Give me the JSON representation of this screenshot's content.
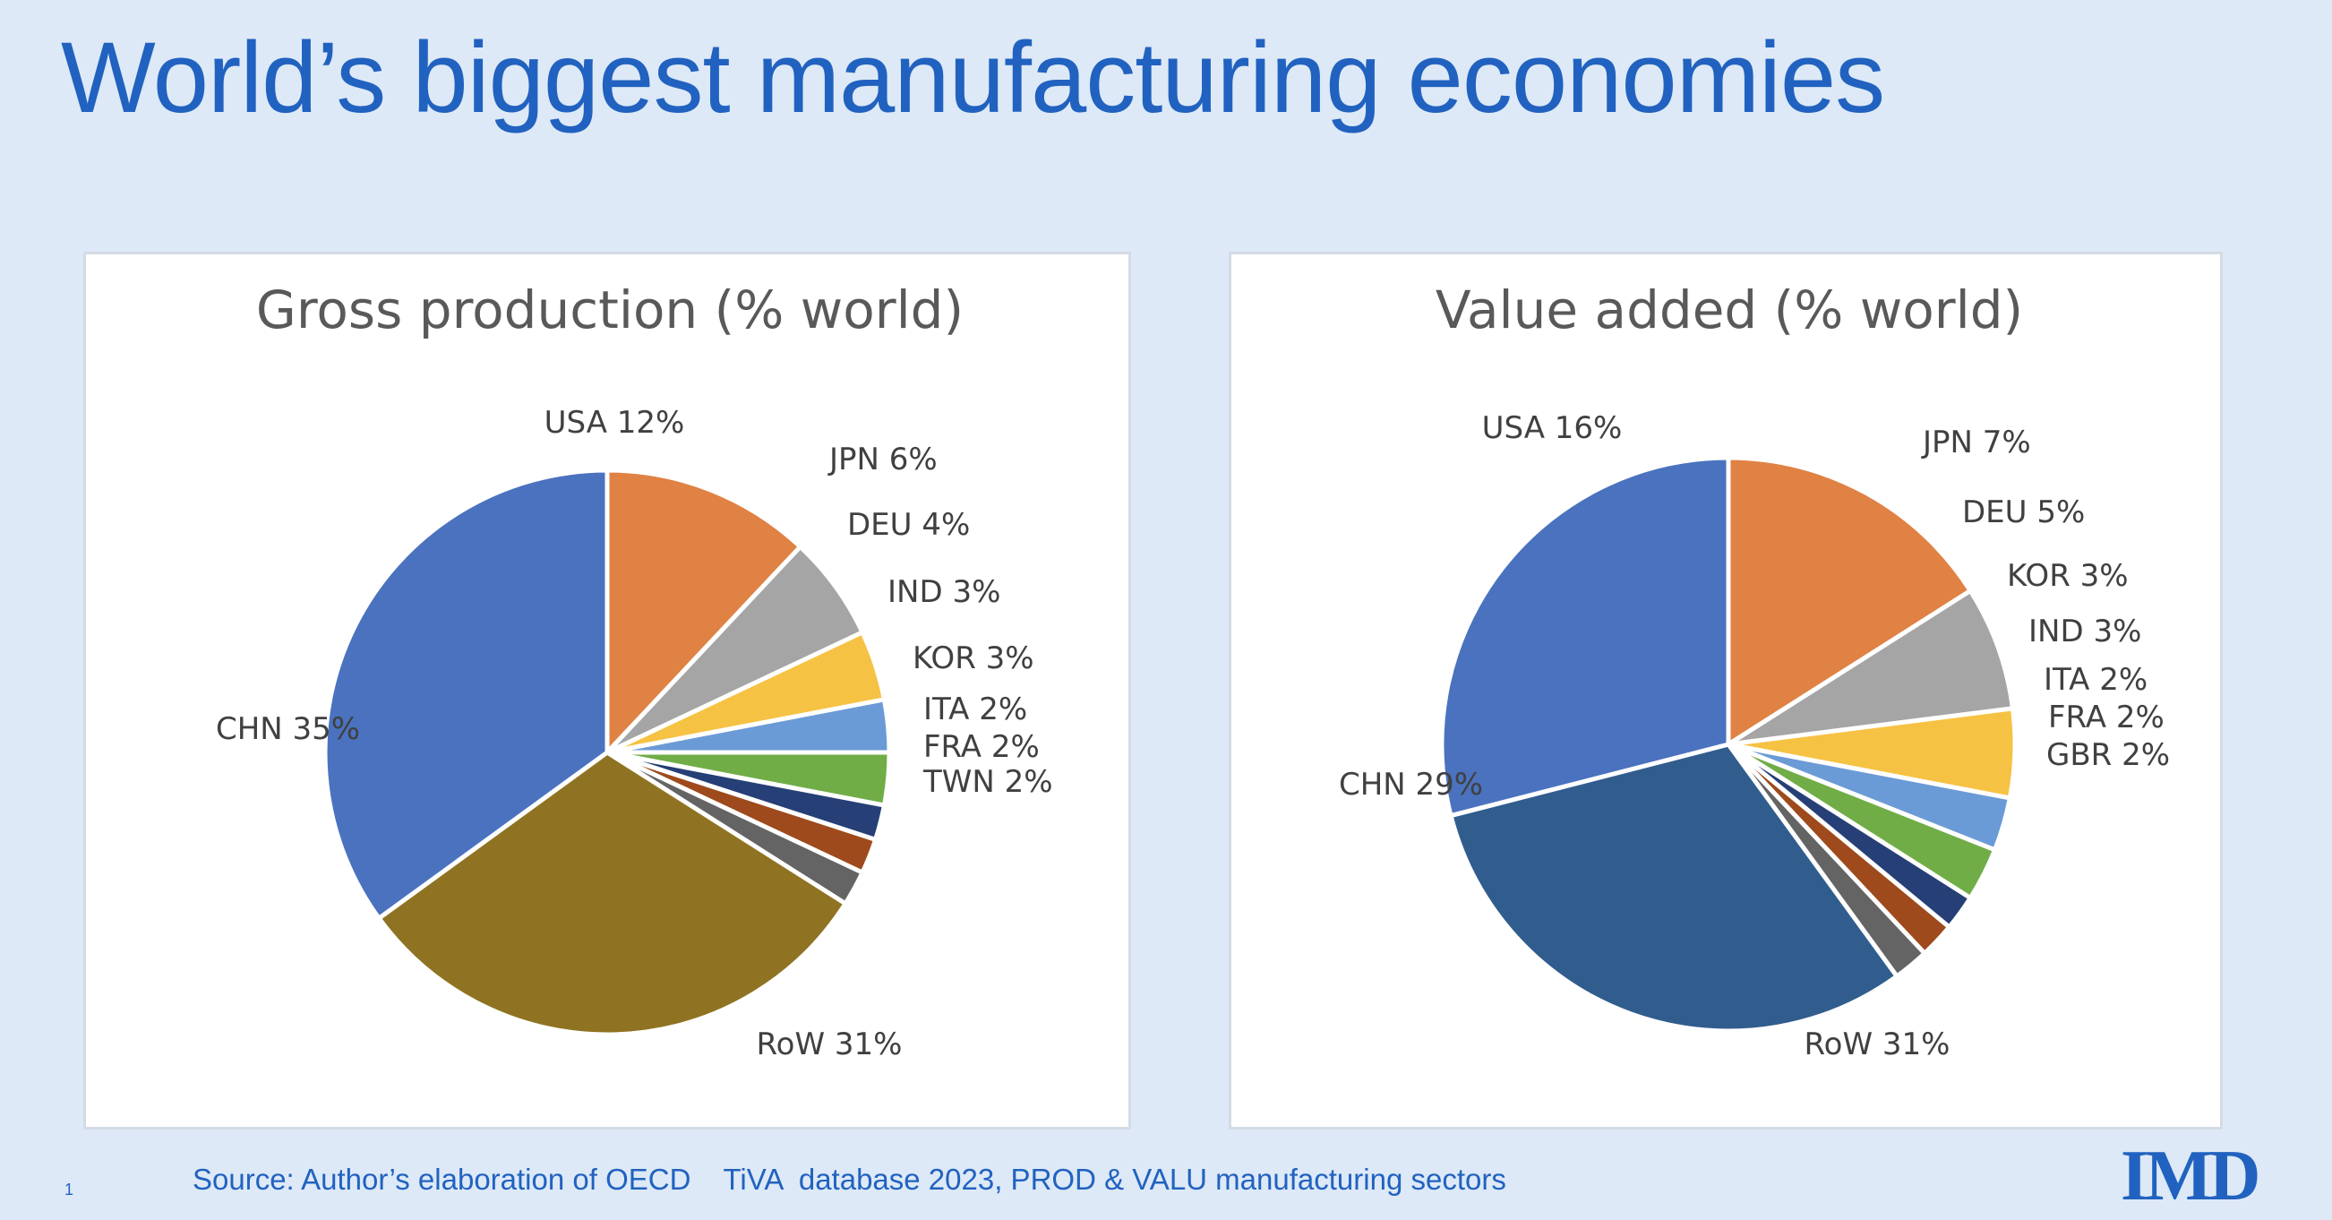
{
  "title": "World’s biggest manufacturing economies",
  "source": "Source: Author’s elaboration of OECD    TiVA  database 2023, PROD & VALU manufacturing sectors",
  "page_number": "1",
  "logo_text": "IMD",
  "chart_data": [
    {
      "type": "pie",
      "title": "Gross production  (% world)",
      "start": "12 o'clock",
      "direction": "clockwise",
      "slices": [
        {
          "category": "USA",
          "value": 12,
          "label": "USA 12%",
          "color": "#df8244"
        },
        {
          "category": "JPN",
          "value": 6,
          "label": "JPN 6%",
          "color": "#a5a5a5"
        },
        {
          "category": "DEU",
          "value": 4,
          "label": "DEU 4%",
          "color": "#f6c243"
        },
        {
          "category": "IND",
          "value": 3,
          "label": "IND 3%",
          "color": "#6b9bd6"
        },
        {
          "category": "KOR",
          "value": 3,
          "label": "KOR 3%",
          "color": "#70ad47"
        },
        {
          "category": "ITA",
          "value": 2,
          "label": "ITA 2%",
          "color": "#263f76"
        },
        {
          "category": "FRA",
          "value": 2,
          "label": "FRA 2%",
          "color": "#9e4a1c"
        },
        {
          "category": "TWN",
          "value": 2,
          "label": "TWN 2%",
          "color": "#646464"
        },
        {
          "category": "RoW",
          "value": 31,
          "label": "RoW 31%",
          "color": "#8f7322"
        },
        {
          "category": "CHN",
          "value": 35,
          "label": "CHN 35%",
          "color": "#4a72bf"
        }
      ]
    },
    {
      "type": "pie",
      "title": "Value added (% world)",
      "start": "12 o'clock",
      "direction": "clockwise",
      "slices": [
        {
          "category": "USA",
          "value": 16,
          "label": "USA 16%",
          "color": "#df8244"
        },
        {
          "category": "JPN",
          "value": 7,
          "label": "JPN 7%",
          "color": "#a5a5a5"
        },
        {
          "category": "DEU",
          "value": 5,
          "label": "DEU 5%",
          "color": "#f6c243"
        },
        {
          "category": "KOR",
          "value": 3,
          "label": "KOR 3%",
          "color": "#6b9bd6"
        },
        {
          "category": "IND",
          "value": 3,
          "label": "IND 3%",
          "color": "#70ad47"
        },
        {
          "category": "ITA",
          "value": 2,
          "label": "ITA 2%",
          "color": "#263f76"
        },
        {
          "category": "FRA",
          "value": 2,
          "label": "FRA 2%",
          "color": "#9e4a1c"
        },
        {
          "category": "GBR",
          "value": 2,
          "label": "GBR 2%",
          "color": "#646464"
        },
        {
          "category": "RoW",
          "value": 31,
          "label": "RoW 31%",
          "color": "#315d8e"
        },
        {
          "category": "CHN",
          "value": 29,
          "label": "CHN 29%",
          "color": "#4a72bf"
        }
      ]
    }
  ]
}
